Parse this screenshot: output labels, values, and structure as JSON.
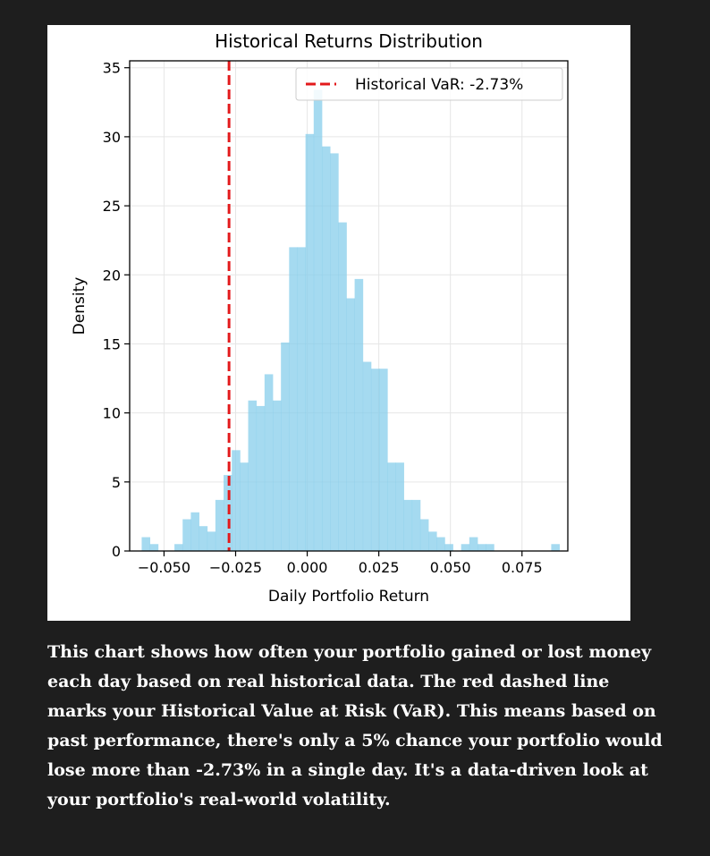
{
  "chart_data": {
    "type": "bar",
    "title": "Historical Returns Distribution",
    "xlabel": "Daily Portfolio Return",
    "ylabel": "Density",
    "xlim": [
      -0.062,
      0.091
    ],
    "ylim": [
      0,
      35.5
    ],
    "xticks": [
      -0.05,
      -0.025,
      0.0,
      0.025,
      0.05,
      0.075
    ],
    "xtick_labels": [
      "−0.050",
      "−0.025",
      "0.000",
      "0.025",
      "0.050",
      "0.075"
    ],
    "yticks": [
      0,
      5,
      10,
      15,
      20,
      25,
      30,
      35
    ],
    "ytick_labels": [
      "0",
      "5",
      "10",
      "15",
      "20",
      "25",
      "30",
      "35"
    ],
    "grid": true,
    "legend_position": "top-right",
    "bar_color": "#87ceeb",
    "bin_start": -0.0578,
    "bin_width": 0.00286,
    "values": [
      1.0,
      0.5,
      0.0,
      0.0,
      0.5,
      2.3,
      2.8,
      1.8,
      1.4,
      3.7,
      5.5,
      7.3,
      6.4,
      10.9,
      10.5,
      12.8,
      10.9,
      15.1,
      22.0,
      22.0,
      30.2,
      33.4,
      29.3,
      28.8,
      23.8,
      18.3,
      19.7,
      13.7,
      13.2,
      13.2,
      6.4,
      6.4,
      3.7,
      3.7,
      2.3,
      1.4,
      1.0,
      0.5,
      0.0,
      0.5,
      1.0,
      0.5,
      0.5,
      0.0,
      0.0,
      0.0,
      0.0,
      0.0,
      0.0,
      0.0,
      0.5
    ],
    "var_line": {
      "x": -0.0273,
      "label": "Historical VaR: -2.73%",
      "color": "#e31a1c"
    }
  },
  "caption": {
    "text": "This chart shows how often your portfolio gained or lost money each day based on real historical data. The red dashed line marks your Historical Value at Risk (VaR). This means based on past performance, there's only a 5% chance your portfolio would lose more than -2.73% in a single day. It's a data-driven look at your portfolio's real-world volatility."
  }
}
